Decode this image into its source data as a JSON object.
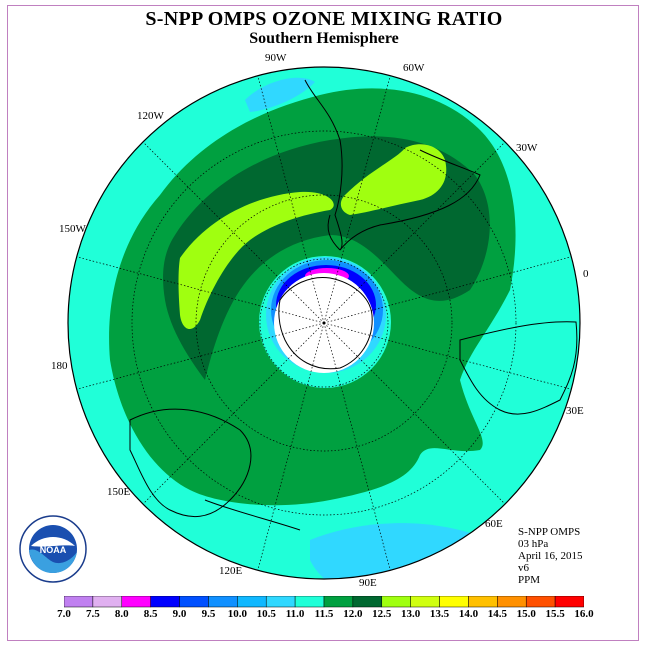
{
  "title": "S-NPP OMPS OZONE MIXING RATIO",
  "subtitle": "Southern Hemisphere",
  "longitude_labels": {
    "w90": "90W",
    "w60": "60W",
    "w30": "30W",
    "e0": "0",
    "e30": "30E",
    "e60": "60E",
    "e90": "90E",
    "e120": "120E",
    "e150": "150E",
    "d180": "180",
    "w150": "150W",
    "w120": "120W"
  },
  "info": {
    "instrument": "S-NPP OMPS",
    "pressure": "03 hPa",
    "date": "April 16, 2015",
    "version": "v6",
    "units": "PPM"
  },
  "logo": {
    "text": "NOAA",
    "icon": "noaa-logo"
  },
  "colorbar": {
    "labels": [
      "7.0",
      "7.5",
      "8.0",
      "8.5",
      "9.0",
      "9.5",
      "10.0",
      "10.5",
      "11.0",
      "11.5",
      "12.0",
      "12.5",
      "13.0",
      "13.5",
      "14.0",
      "14.5",
      "15.0",
      "15.5",
      "16.0"
    ],
    "colors": [
      "#c080f0",
      "#e0b0f0",
      "#ff00ff",
      "#0000ff",
      "#0050ff",
      "#1090ff",
      "#10b8ff",
      "#30d8ff",
      "#20ffd8",
      "#00a040",
      "#006830",
      "#a0ff10",
      "#d0ff10",
      "#ffff00",
      "#ffc000",
      "#ff9000",
      "#ff5000",
      "#ff0000",
      "#8b5a3c"
    ]
  },
  "map_colors": {
    "background": "#20ffd8",
    "band_mid": "#00a040",
    "band_high": "#006830",
    "peak": "#a0ff10",
    "low": "#30d8ff",
    "vortex_blue": "#0000ff",
    "vortex_magenta": "#ff00ff",
    "no_data": "#ffffff"
  }
}
